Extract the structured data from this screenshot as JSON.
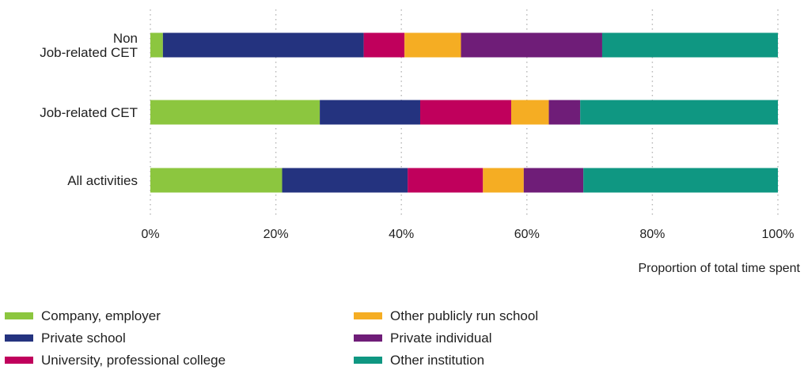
{
  "chart_data": {
    "type": "bar",
    "orientation": "horizontal",
    "stacked": true,
    "categories": [
      [
        "Non",
        "Job-related CET"
      ],
      [
        "Job-related CET"
      ],
      [
        "All activities"
      ]
    ],
    "series": [
      {
        "name": "Company, employer",
        "color": "#8cc63f",
        "values": [
          2,
          27,
          21
        ]
      },
      {
        "name": "Private school",
        "color": "#24337f",
        "values": [
          32,
          16,
          20
        ]
      },
      {
        "name": "University, professional college",
        "color": "#c0005c",
        "values": [
          6.5,
          14.5,
          12
        ]
      },
      {
        "name": "Other publicly run school",
        "color": "#f5ad23",
        "values": [
          9,
          6,
          6.5
        ]
      },
      {
        "name": "Private individual",
        "color": "#6f1d78",
        "values": [
          22.5,
          5,
          9.5
        ]
      },
      {
        "name": "Other institution",
        "color": "#0f9782",
        "values": [
          28,
          31.5,
          31
        ]
      }
    ],
    "x_ticks": [
      "0%",
      "20%",
      "40%",
      "60%",
      "80%",
      "100%"
    ],
    "xlim": [
      0,
      100
    ],
    "xlabel": "Proportion of total time spent",
    "grid": true,
    "legend_position": "bottom"
  }
}
